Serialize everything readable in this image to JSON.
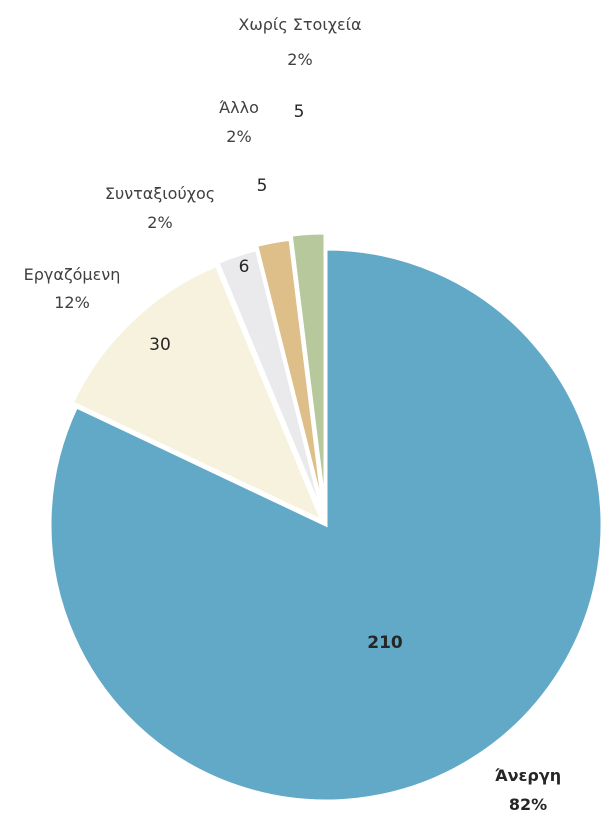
{
  "chart_data": {
    "type": "pie",
    "title": "",
    "legend": "none",
    "slices": [
      {
        "name": "Άνεργη",
        "value": 210,
        "percent": "82%",
        "color": "#62a9c8",
        "explode": false
      },
      {
        "name": "Εργαζόμενη",
        "value": 30,
        "percent": "12%",
        "color": "#f6f2de",
        "explode": true
      },
      {
        "name": "Συνταξιούχος",
        "value": 6,
        "percent": "2%",
        "color": "#eaeaed",
        "explode": true
      },
      {
        "name": "Άλλο",
        "value": 5,
        "percent": "2%",
        "color": "#dfbf89",
        "explode": true
      },
      {
        "name": "Χωρίς Στοιχεία",
        "value": 5,
        "percent": "2%",
        "color": "#b7c99c",
        "explode": true
      }
    ]
  }
}
